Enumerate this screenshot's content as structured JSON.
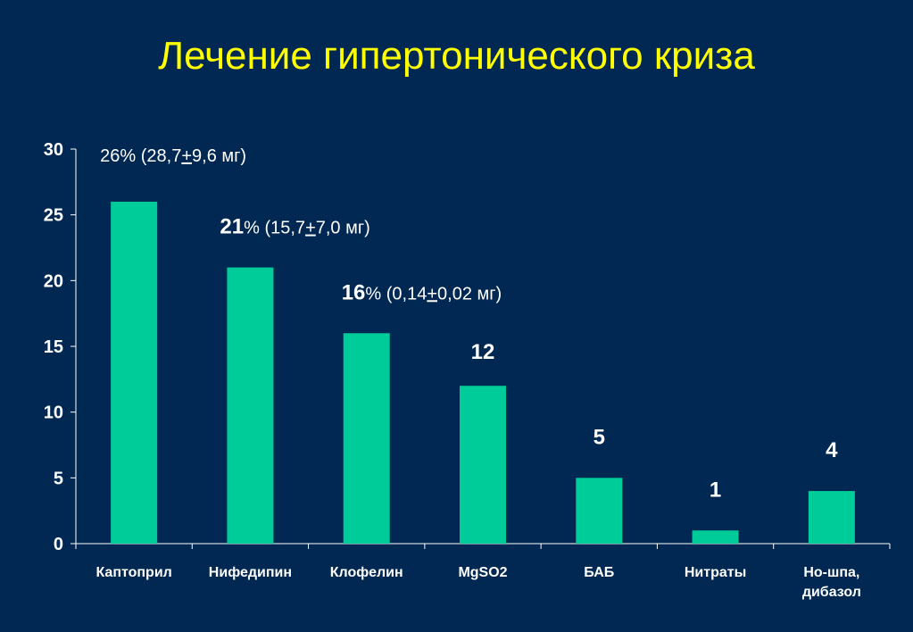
{
  "title": "Лечение гипертонического криза",
  "colors": {
    "background": "#012852",
    "title": "#ffff00",
    "bar": "#00cc99",
    "axis": "#ffffff",
    "text": "#ffffff"
  },
  "chart_data": {
    "type": "bar",
    "categories": [
      "Каптоприл",
      "Нифедипин",
      "Клофелин",
      "MgSO2",
      "БАБ",
      "Нитраты",
      "Но-шпа, дибазол"
    ],
    "values": [
      26,
      21,
      16,
      12,
      5,
      1,
      4
    ],
    "ylim": [
      0,
      30
    ],
    "yticks": [
      0,
      5,
      10,
      15,
      20,
      25,
      30
    ],
    "grid": false,
    "legend": "none",
    "data_labels": [
      [
        {
          "text": "26",
          "bold": false
        },
        {
          "text": "% (28,7",
          "bold": false
        },
        {
          "text": "+",
          "bold": false,
          "underline": true
        },
        {
          "text": "9,6 мг)",
          "bold": false
        }
      ],
      [
        {
          "text": "21",
          "bold": true
        },
        {
          "text": "% (15,7",
          "bold": false
        },
        {
          "text": "+",
          "bold": false,
          "underline": true
        },
        {
          "text": "7,0 мг)",
          "bold": false
        }
      ],
      [
        {
          "text": "16",
          "bold": true
        },
        {
          "text": "% (0,14",
          "bold": false
        },
        {
          "text": "+",
          "bold": false,
          "underline": true
        },
        {
          "text": "0,02 мг)",
          "bold": false
        }
      ],
      [
        {
          "text": "12",
          "bold": true
        }
      ],
      [
        {
          "text": "5",
          "bold": true
        }
      ],
      [
        {
          "text": "1",
          "bold": true
        }
      ],
      [
        {
          "text": "4",
          "bold": true
        }
      ]
    ]
  }
}
